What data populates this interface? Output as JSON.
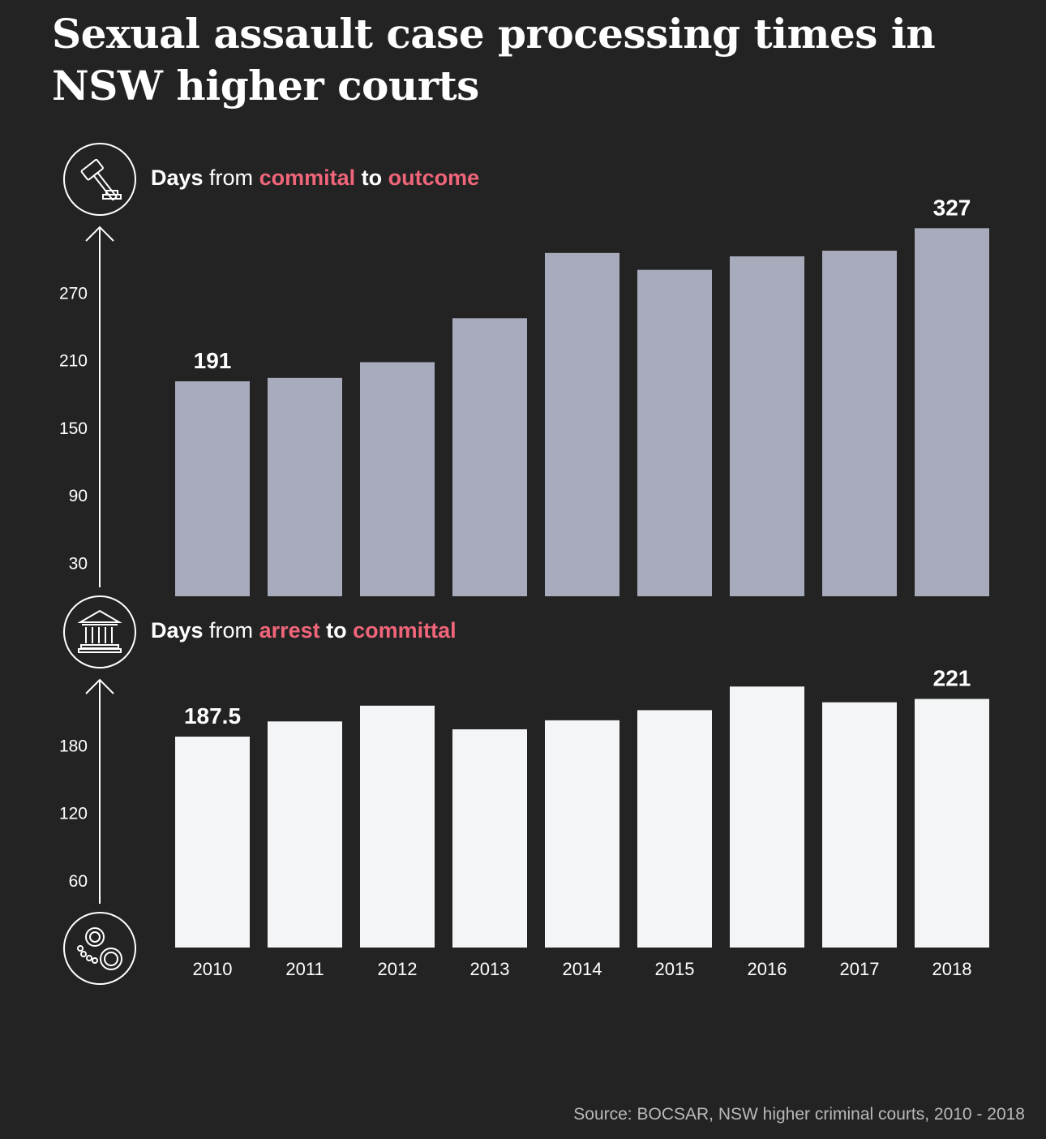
{
  "title": "Sexual assault case processing times in NSW higher courts",
  "source": "Source: BOCSAR, NSW higher criminal courts, 2010 - 2018",
  "colors": {
    "background": "#232323",
    "accent": "#f0657a",
    "top_bars": "#a7abbb",
    "bottom_bars": "#f4f5f7",
    "text": "#ffffff"
  },
  "icons": [
    "gavel-icon",
    "courthouse-icon",
    "handcuffs-icon"
  ],
  "chart_data": [
    {
      "type": "bar",
      "label": {
        "p1": "Days",
        "p2": " from ",
        "p3": "commital",
        "p4": " to ",
        "p5": "outcome"
      },
      "title": "Days from commital to outcome",
      "categories": [
        "2010",
        "2011",
        "2012",
        "2013",
        "2014",
        "2015",
        "2016",
        "2017",
        "2018"
      ],
      "values": [
        191,
        194,
        208,
        247,
        305,
        290,
        302,
        307,
        327
      ],
      "data_labels": {
        "0": "191",
        "8": "327"
      },
      "yticks": [
        30,
        90,
        150,
        210,
        270
      ],
      "ylim": [
        0,
        330
      ]
    },
    {
      "type": "bar",
      "label": {
        "p1": "Days",
        "p2": " from ",
        "p3": "arrest",
        "p4": " to ",
        "p5": "committal"
      },
      "title": "Days from arrest to committal",
      "categories": [
        "2010",
        "2011",
        "2012",
        "2013",
        "2014",
        "2015",
        "2016",
        "2017",
        "2018"
      ],
      "values": [
        187.5,
        201,
        215,
        194,
        202,
        211,
        232,
        218,
        221
      ],
      "data_labels": {
        "0": "187.5",
        "8": "221"
      },
      "yticks": [
        60,
        120,
        180
      ],
      "ylim": [
        0,
        240
      ]
    }
  ]
}
